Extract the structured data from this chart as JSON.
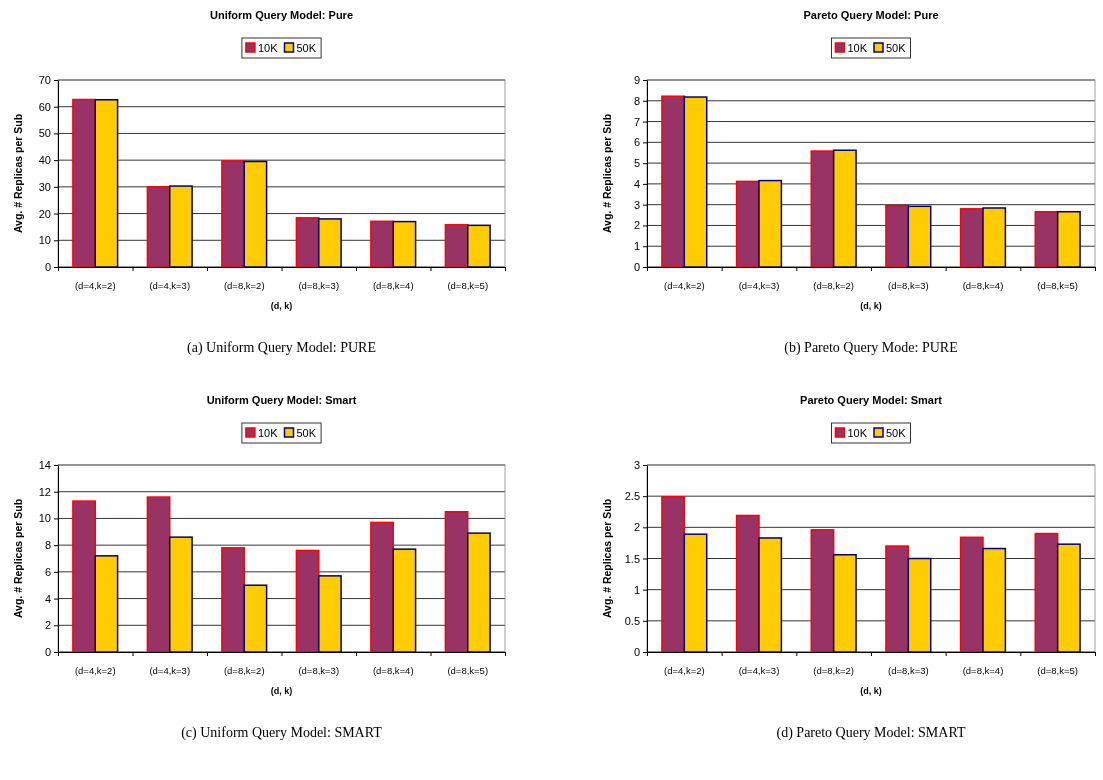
{
  "chart_data": [
    {
      "type": "bar",
      "title": "Uniform Query Model: Pure",
      "xlabel": "(d, k)",
      "ylabel": "Avg. # Replicas per Sub",
      "categories": [
        "(d=4,k=2)",
        "(d=4,k=3)",
        "(d=8,k=2)",
        "(d=8,k=3)",
        "(d=8,k=4)",
        "(d=8,k=5)"
      ],
      "series": [
        {
          "name": "10K",
          "color": "#993366",
          "values": [
            62.7,
            30.0,
            39.7,
            18.4,
            17.1,
            15.8
          ]
        },
        {
          "name": "50K",
          "color": "#ffcc00",
          "values": [
            62.6,
            30.3,
            39.5,
            18.0,
            17.0,
            15.6
          ]
        }
      ],
      "ylim": [
        0,
        70
      ],
      "yticks": [
        0,
        10,
        20,
        30,
        40,
        50,
        60,
        70
      ],
      "grid": "y",
      "legend": "top",
      "annotations": [
        "(a) Uniform Query Model: PURE"
      ]
    },
    {
      "type": "bar",
      "title": "Pareto Query Model: Pure",
      "xlabel": "(d, k)",
      "ylabel": "Avg. # Replicas per Sub",
      "categories": [
        "(d=4,k=2)",
        "(d=4,k=3)",
        "(d=8,k=2)",
        "(d=8,k=3)",
        "(d=8,k=4)",
        "(d=8,k=5)"
      ],
      "series": [
        {
          "name": "10K",
          "color": "#993366",
          "values": [
            8.22,
            4.12,
            5.58,
            2.95,
            2.8,
            2.66
          ]
        },
        {
          "name": "50K",
          "color": "#ffcc00",
          "values": [
            8.18,
            4.16,
            5.62,
            2.92,
            2.84,
            2.66
          ]
        }
      ],
      "ylim": [
        0,
        9
      ],
      "yticks": [
        0,
        1,
        2,
        3,
        4,
        5,
        6,
        7,
        8,
        9
      ],
      "grid": "y",
      "legend": "top",
      "annotations": [
        "(b) Pareto Query Mode: PURE"
      ]
    },
    {
      "type": "bar",
      "title": "Uniform Query Model: Smart",
      "xlabel": "(d, k)",
      "ylabel": "Avg. # Replicas per Sub",
      "categories": [
        "(d=4,k=2)",
        "(d=4,k=3)",
        "(d=8,k=2)",
        "(d=8,k=3)",
        "(d=8,k=4)",
        "(d=8,k=5)"
      ],
      "series": [
        {
          "name": "10K",
          "color": "#993366",
          "values": [
            11.3,
            11.6,
            7.8,
            7.6,
            9.7,
            10.5
          ]
        },
        {
          "name": "50K",
          "color": "#ffcc00",
          "values": [
            7.2,
            8.6,
            5.0,
            5.7,
            7.7,
            8.9
          ]
        }
      ],
      "ylim": [
        0,
        14
      ],
      "yticks": [
        0,
        2,
        4,
        6,
        8,
        10,
        12,
        14
      ],
      "grid": "y",
      "legend": "top",
      "annotations": [
        "(c) Uniform Query Model: SMART"
      ]
    },
    {
      "type": "bar",
      "title": "Pareto Query Model: Smart",
      "xlabel": "(d, k)",
      "ylabel": "Avg. # Replicas per Sub",
      "categories": [
        "(d=4,k=2)",
        "(d=4,k=3)",
        "(d=8,k=2)",
        "(d=8,k=3)",
        "(d=8,k=4)",
        "(d=8,k=5)"
      ],
      "series": [
        {
          "name": "10K",
          "color": "#993366",
          "values": [
            2.49,
            2.19,
            1.96,
            1.7,
            1.84,
            1.9
          ]
        },
        {
          "name": "50K",
          "color": "#ffcc00",
          "values": [
            1.89,
            1.83,
            1.56,
            1.5,
            1.66,
            1.73
          ]
        }
      ],
      "ylim": [
        0,
        3
      ],
      "yticks": [
        0,
        0.5,
        1,
        1.5,
        2,
        2.5,
        3
      ],
      "grid": "y",
      "legend": "top",
      "annotations": [
        "(d) Pareto Query Model: SMART"
      ]
    }
  ]
}
